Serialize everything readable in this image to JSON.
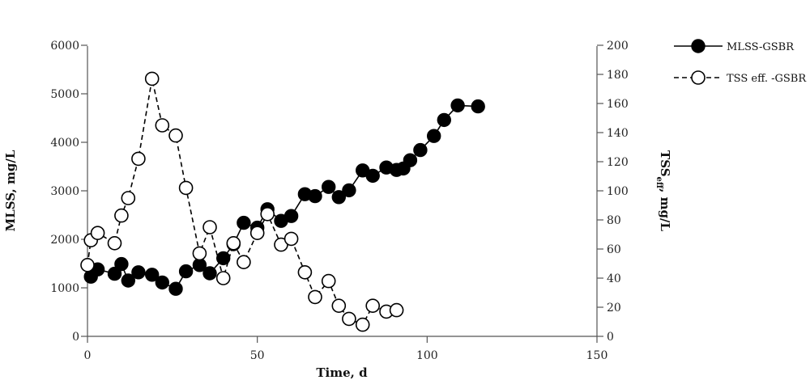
{
  "chart_data": {
    "type": "line",
    "xlabel": "Time, d",
    "ylabel": "MLSS, mg/L",
    "y2label_main": "TSS",
    "y2label_sub": "eff",
    "y2label_rest": ", mg/L",
    "xlim": [
      0,
      150
    ],
    "xticks": [
      "0",
      "50",
      "100",
      "150"
    ],
    "ylim": [
      0,
      6000
    ],
    "yticks": [
      "0",
      "1000",
      "2000",
      "3000",
      "4000",
      "5000",
      "6000"
    ],
    "y2lim": [
      0,
      200
    ],
    "y2ticks": [
      "0",
      "20",
      "40",
      "60",
      "80",
      "100",
      "120",
      "140",
      "160",
      "180",
      "200"
    ],
    "legend_position": "top-right",
    "series": [
      {
        "name": "MLSS-GSBR",
        "axis": "left",
        "marker": "filled-circle",
        "line": "solid",
        "color": "#000000",
        "x": [
          1,
          3,
          8,
          10,
          12,
          15,
          19,
          22,
          26,
          29,
          33,
          36,
          40,
          43,
          46,
          50,
          53,
          57,
          60,
          64,
          67,
          71,
          74,
          77,
          81,
          84,
          88,
          91,
          93,
          95,
          98,
          102,
          105,
          109,
          115
        ],
        "y": [
          1230,
          1380,
          1290,
          1490,
          1150,
          1320,
          1270,
          1110,
          980,
          1340,
          1470,
          1300,
          1610,
          1900,
          2340,
          2240,
          2620,
          2380,
          2480,
          2930,
          2890,
          3080,
          2870,
          3010,
          3420,
          3310,
          3480,
          3430,
          3460,
          3630,
          3840,
          4130,
          4460,
          4760,
          4740
        ]
      },
      {
        "name": "TSS eff. -GSBR",
        "axis": "right",
        "marker": "open-circle",
        "line": "dashed",
        "color": "#000000",
        "x": [
          0,
          1,
          3,
          8,
          10,
          12,
          15,
          19,
          22,
          26,
          29,
          33,
          36,
          40,
          43,
          46,
          50,
          53,
          57,
          60,
          64,
          67,
          71,
          74,
          77,
          81,
          84,
          88,
          91
        ],
        "y": [
          49,
          66,
          71,
          64,
          83,
          95,
          122,
          177,
          145,
          138,
          102,
          57,
          75,
          40,
          64,
          51,
          71,
          84,
          63,
          67,
          44,
          27,
          38,
          21,
          12,
          8,
          21,
          17,
          18
        ]
      }
    ]
  }
}
